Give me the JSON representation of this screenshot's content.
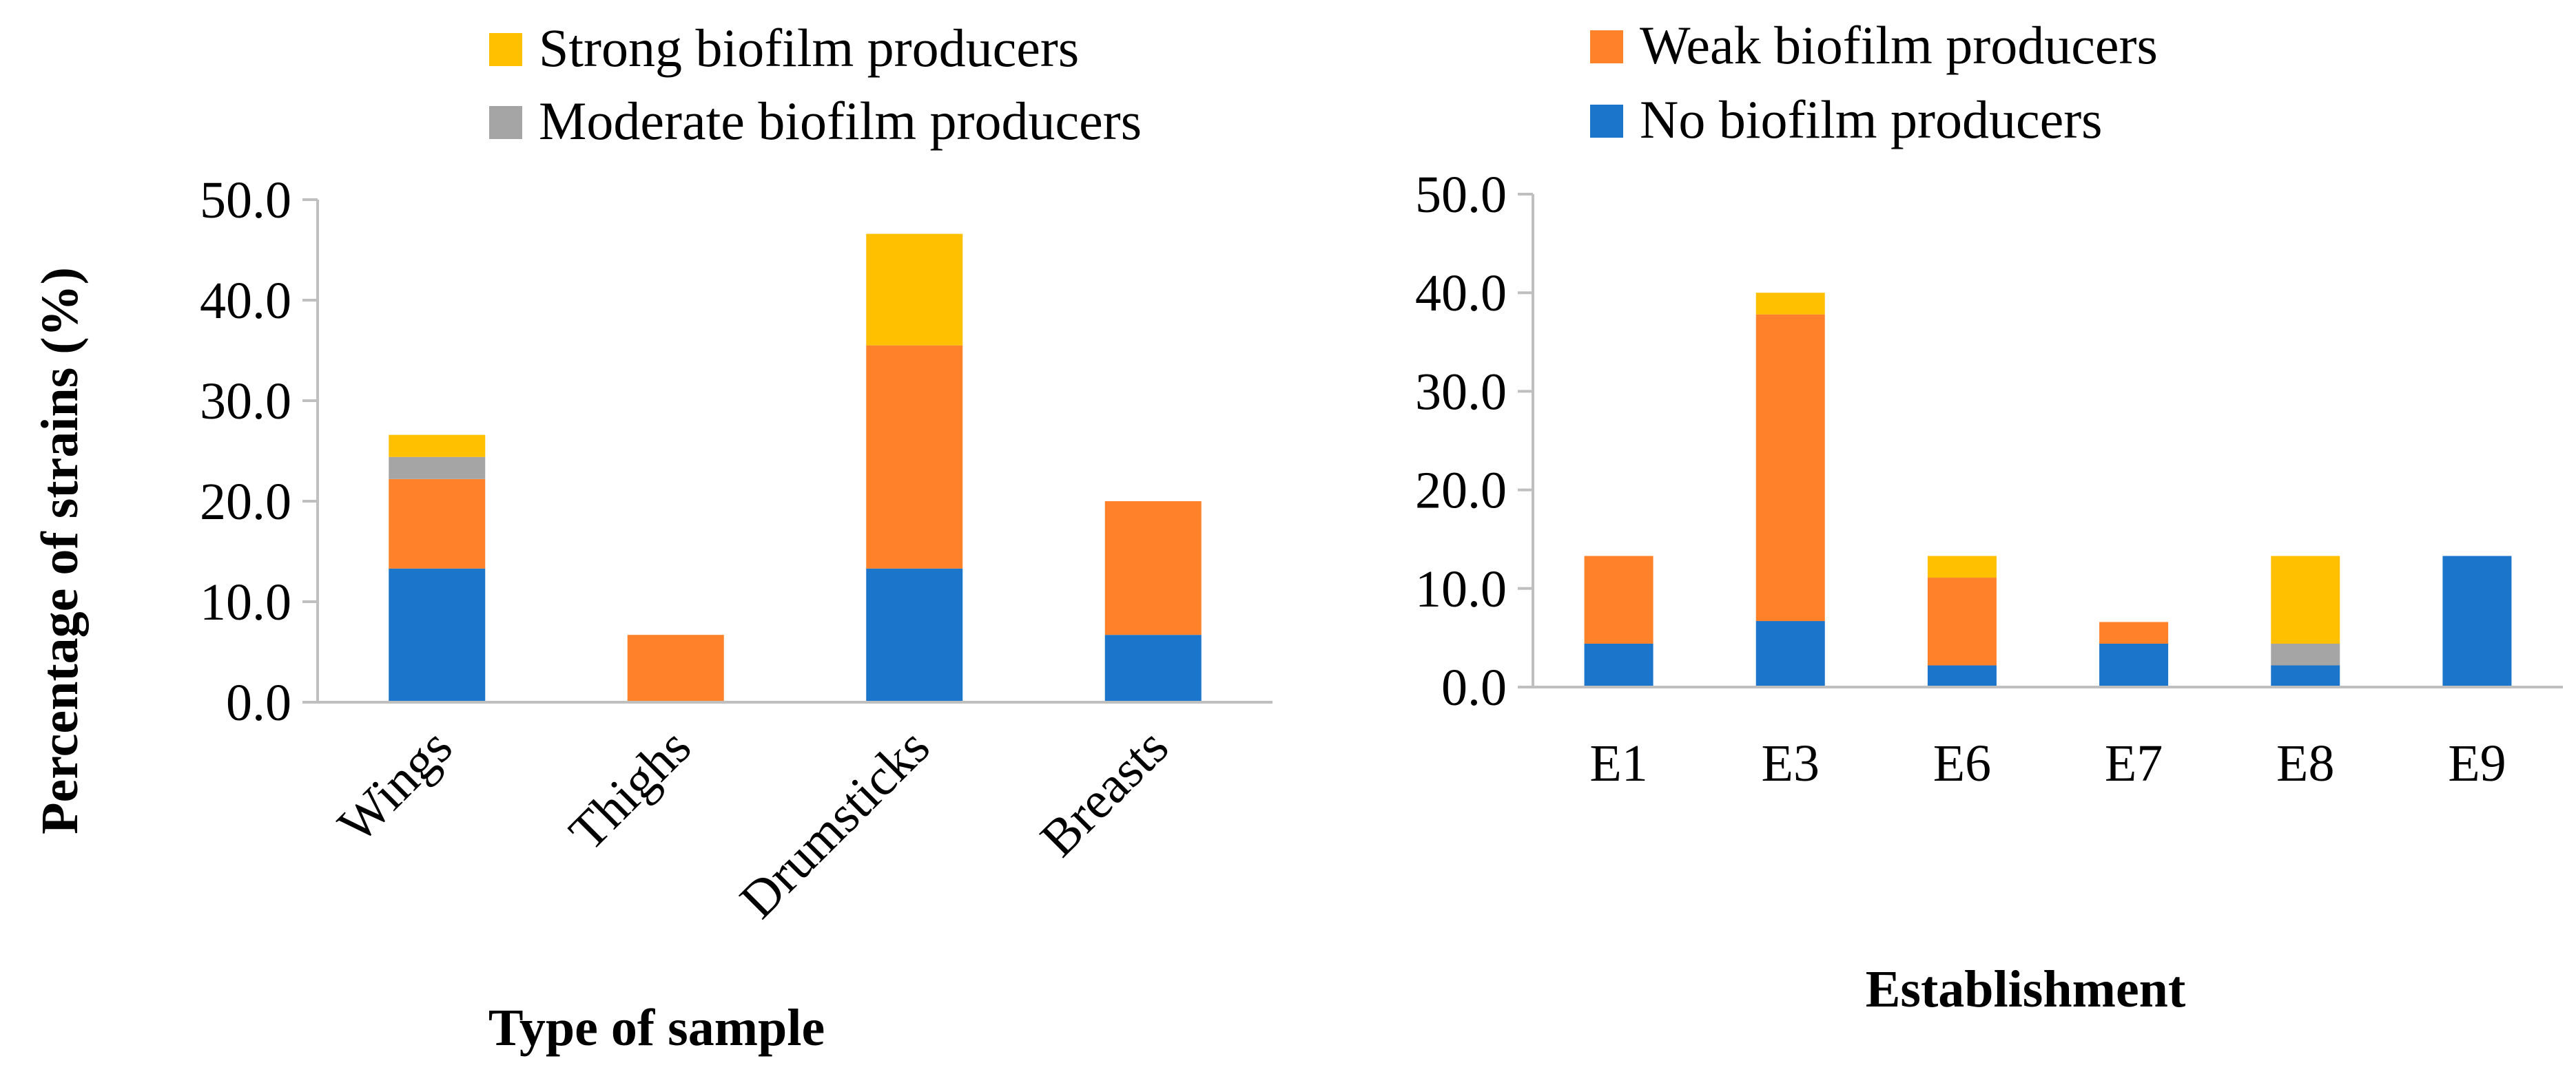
{
  "legend": [
    {
      "key": "strong",
      "label": "Strong biofilm producers",
      "color": "#FFC000"
    },
    {
      "key": "moderate",
      "label": "Moderate biofilm producers",
      "color": "#A5A5A5"
    },
    {
      "key": "weak",
      "label": "Weak biofilm producers",
      "color": "#FF822B"
    },
    {
      "key": "none",
      "label": "No biofilm producers",
      "color": "#1B75CB"
    }
  ],
  "chart_data": [
    {
      "type": "bar",
      "stacked": true,
      "categories": [
        "Wings",
        "Thighs",
        "Drumsticks",
        "Breasts"
      ],
      "series": [
        {
          "name": "No biofilm producers",
          "values": [
            13.3,
            0.0,
            13.3,
            6.7
          ]
        },
        {
          "name": "Weak biofilm producers",
          "values": [
            8.9,
            6.7,
            22.2,
            13.3
          ]
        },
        {
          "name": "Moderate biofilm producers",
          "values": [
            2.2,
            0.0,
            0.0,
            0.0
          ]
        },
        {
          "name": "Strong biofilm producers",
          "values": [
            2.2,
            0.0,
            11.1,
            0.0
          ]
        }
      ],
      "ylim": [
        0,
        50
      ],
      "yticks": [
        "0.0",
        "10.0",
        "20.0",
        "30.0",
        "40.0",
        "50.0"
      ],
      "xlabel": "Type of sample",
      "ylabel": "Percentage of strains (%)",
      "x_tick_rotation": -45,
      "grid": false
    },
    {
      "type": "bar",
      "stacked": true,
      "categories": [
        "E1",
        "E3",
        "E6",
        "E7",
        "E8",
        "E9"
      ],
      "series": [
        {
          "name": "No biofilm producers",
          "values": [
            4.4,
            6.7,
            2.2,
            4.4,
            2.2,
            13.3
          ]
        },
        {
          "name": "Weak biofilm producers",
          "values": [
            8.9,
            31.1,
            8.9,
            2.2,
            0.0,
            0.0
          ]
        },
        {
          "name": "Moderate biofilm producers",
          "values": [
            0.0,
            0.0,
            0.0,
            0.0,
            2.2,
            0.0
          ]
        },
        {
          "name": "Strong biofilm producers",
          "values": [
            0.0,
            2.2,
            2.2,
            0.0,
            8.9,
            0.0
          ]
        }
      ],
      "ylim": [
        0,
        50
      ],
      "yticks": [
        "0.0",
        "10.0",
        "20.0",
        "30.0",
        "40.0",
        "50.0"
      ],
      "xlabel": "Establishment",
      "ylabel": "",
      "x_tick_rotation": 0,
      "grid": false
    }
  ]
}
